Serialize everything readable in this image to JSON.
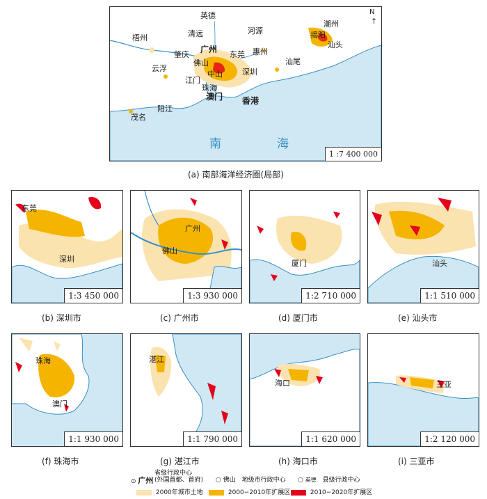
{
  "colors": {
    "sea": "#cfe8f3",
    "coast": "#3a8fc7",
    "urban2000": "#fbe3b0",
    "exp2000_2010": "#f5b400",
    "exp2010_2020": "#e5001c",
    "river": "#3a8fc7"
  },
  "main": {
    "scale": "1 :7 400 000",
    "north": "N",
    "caption": "(a) 南部海洋经济圈(局部)",
    "cities": {
      "yingde": "英德",
      "wuzhou": "梧州",
      "qingyuan": "清远",
      "heyuan": "河源",
      "chaozhou": "潮州",
      "jieyang": "揭阳",
      "shantou": "汕头",
      "guangzhou": "广州",
      "zhaoqing": "肇庆",
      "foshan": "佛山",
      "dongguan": "东莞",
      "huizhou": "惠州",
      "yunfu": "云浮",
      "jiangmen": "江门",
      "zhongshan": "中山",
      "shenzhen": "深圳",
      "shanwei": "汕尾",
      "zhuhai": "珠海",
      "macau": "澳门",
      "hongkong": "香港",
      "yangjiang": "阳江",
      "maoming": "茂名"
    },
    "sea_label": [
      "南",
      "海"
    ]
  },
  "panels": [
    {
      "id": "b",
      "scale": "1:3 450 000",
      "caption": "(b) 深圳市",
      "labels": [
        "东莞",
        "深圳"
      ]
    },
    {
      "id": "c",
      "scale": "1:3 930 000",
      "caption": "(c) 广州市",
      "labels": [
        "广州",
        "佛山"
      ]
    },
    {
      "id": "d",
      "scale": "1:2 710 000",
      "caption": "(d) 厦门市",
      "labels": [
        "厦门"
      ]
    },
    {
      "id": "e",
      "scale": "1:1 510 000",
      "caption": "(e) 汕头市",
      "labels": [
        "汕头"
      ]
    },
    {
      "id": "f",
      "scale": "1:1 930 000",
      "caption": "(f) 珠海市",
      "labels": [
        "珠海",
        "澳门"
      ]
    },
    {
      "id": "g",
      "scale": "1:1 790 000",
      "caption": "(g) 湛江市",
      "labels": [
        "湛江"
      ]
    },
    {
      "id": "h",
      "scale": "1:1 620 000",
      "caption": "(h) 海口市",
      "labels": [
        "海口"
      ]
    },
    {
      "id": "i",
      "scale": "1:2 120 000",
      "caption": "(i) 三亚市",
      "labels": [
        "三亚"
      ]
    }
  ],
  "legend": {
    "provincial_city": "广州",
    "provincial_desc_1": "省级行政中心",
    "provincial_desc_2": "(外国首都、首府)",
    "prefecture_city": "佛山",
    "prefecture_desc": "地级市行政中心",
    "county_city": "英德",
    "county_desc": "县级行政中心",
    "urban2000": "2000年城市土地",
    "exp2000_2010": "2000−2010年扩展区",
    "exp2010_2020": "2010−2020年扩展区"
  }
}
